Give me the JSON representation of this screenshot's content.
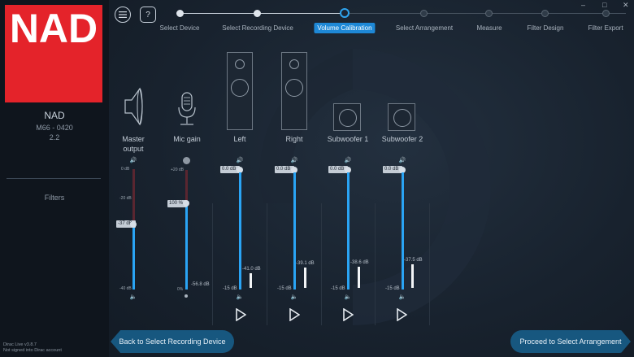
{
  "sidebar": {
    "logo_text": "NAD",
    "device_brand": "NAD",
    "device_model": "M66 - 0420",
    "device_version": "2.2",
    "filters_label": "Filters",
    "footer_version": "Dirac Live v3.8.7",
    "footer_status": "Not signed into Dirac account"
  },
  "window_controls": {
    "minimize": "–",
    "maximize": "□",
    "close": "✕"
  },
  "top_buttons": {
    "menu_icon": "hamburger-icon",
    "help_label": "?"
  },
  "steps": [
    {
      "label": "Select Device",
      "state": "done"
    },
    {
      "label": "Select Recording Device",
      "state": "done"
    },
    {
      "label": "Volume Calibration",
      "state": "active"
    },
    {
      "label": "Select Arrangement",
      "state": "pending"
    },
    {
      "label": "Measure",
      "state": "pending"
    },
    {
      "label": "Filter Design",
      "state": "pending"
    },
    {
      "label": "Filter Export",
      "state": "pending"
    }
  ],
  "master": {
    "label_line1": "Master",
    "label_line2": "output",
    "scale_top": "0 dB",
    "scale_mid": "-20 dB",
    "scale_bottom": "-40 dB",
    "value": "-37 dB"
  },
  "mic": {
    "label": "Mic gain",
    "scale_top": "+20 dB",
    "scale_bottom": "0%",
    "value": "100 %",
    "level": "-56.8 dB"
  },
  "channels": [
    {
      "label": "Left",
      "gain": "0.0 dB",
      "min": "-15 dB",
      "level": "-41.0 dB"
    },
    {
      "label": "Right",
      "gain": "0.0 dB",
      "min": "-15 dB",
      "level": "-39.1 dB"
    },
    {
      "label": "Subwoofer 1",
      "gain": "0.0 dB",
      "min": "-15 dB",
      "level": "-38.6 dB"
    },
    {
      "label": "Subwoofer 2",
      "gain": "0.0 dB",
      "min": "-15 dB",
      "level": "-37.5 dB"
    }
  ],
  "nav": {
    "back": "Back to Select Recording Device",
    "proceed": "Proceed to Select Arrangement"
  },
  "colors": {
    "accent": "#2aa4f4",
    "brand_red": "#e4232a",
    "button": "#17577f"
  }
}
